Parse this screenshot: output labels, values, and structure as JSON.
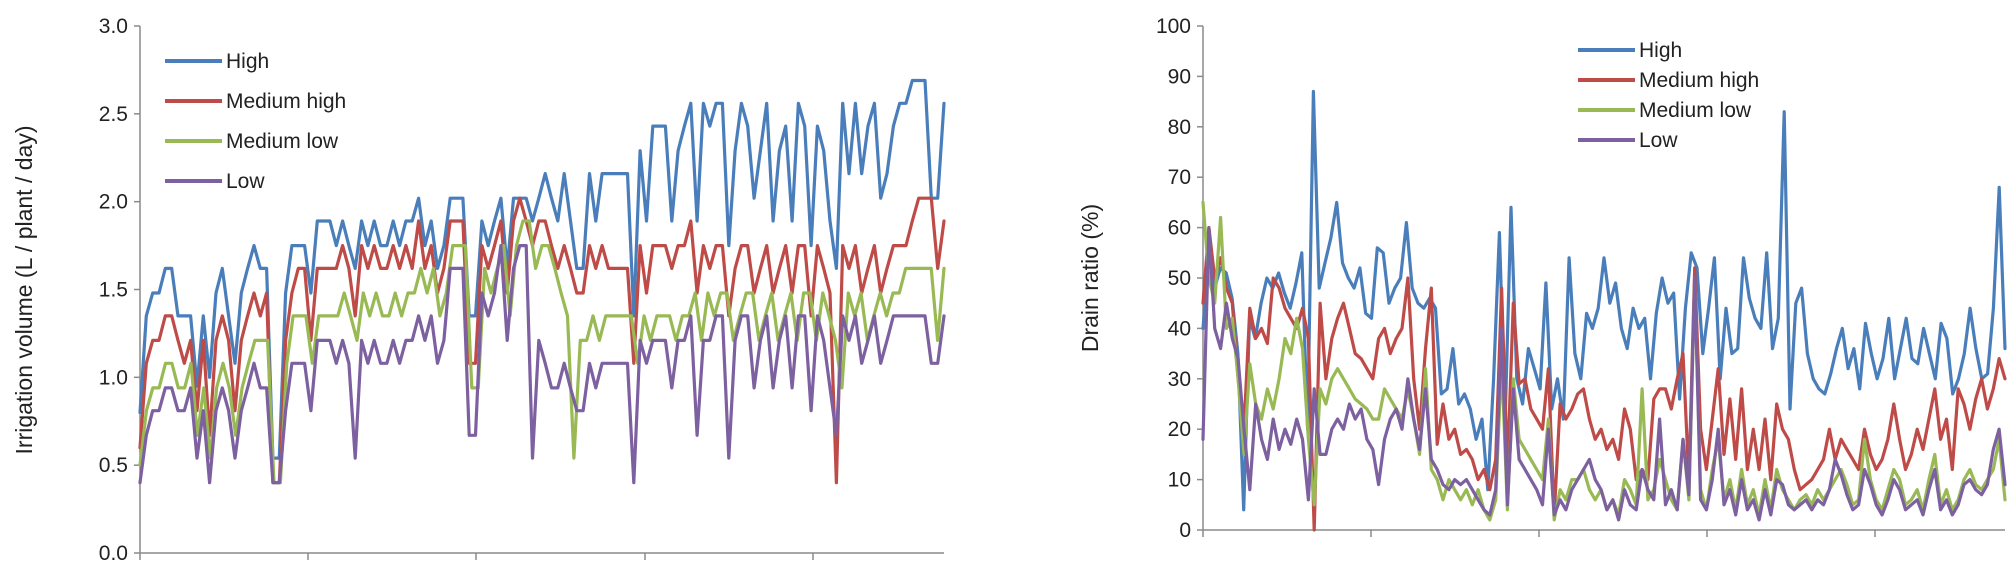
{
  "chart_data": [
    {
      "type": "line",
      "title": "",
      "xlabel": "",
      "ylabel": "Irrigation volume (L / plant / day)",
      "ylim": [
        0,
        3.0
      ],
      "yticks": [
        "0.0",
        "0.5",
        "1.0",
        "1.5",
        "2.0",
        "2.5",
        "3.0"
      ],
      "grid": false,
      "legend": "top-left",
      "series": [
        {
          "name": "High",
          "color": "#4A7EBB",
          "values": [
            0.8,
            1.35,
            1.48,
            1.48,
            1.62,
            1.62,
            1.35,
            1.35,
            1.35,
            0.95,
            1.35,
            1.0,
            1.48,
            1.62,
            1.35,
            1.08,
            1.48,
            1.62,
            1.75,
            1.62,
            1.62,
            0.54,
            0.54,
            1.48,
            1.75,
            1.75,
            1.75,
            1.48,
            1.89,
            1.89,
            1.89,
            1.75,
            1.89,
            1.75,
            1.62,
            1.89,
            1.75,
            1.89,
            1.75,
            1.75,
            1.89,
            1.75,
            1.89,
            1.89,
            2.02,
            1.75,
            1.89,
            1.62,
            1.75,
            2.02,
            2.02,
            2.02,
            1.35,
            1.35,
            1.89,
            1.75,
            1.89,
            2.02,
            1.62,
            2.02,
            2.02,
            2.02,
            1.89,
            2.02,
            2.16,
            2.02,
            1.89,
            2.16,
            1.89,
            1.62,
            1.62,
            2.16,
            1.89,
            2.16,
            2.16,
            2.16,
            2.16,
            2.16,
            1.35,
            2.29,
            1.89,
            2.43,
            2.43,
            2.43,
            1.89,
            2.29,
            2.43,
            2.56,
            1.89,
            2.56,
            2.43,
            2.56,
            2.56,
            1.75,
            2.29,
            2.56,
            2.43,
            2.02,
            2.29,
            2.56,
            1.89,
            2.29,
            2.43,
            1.89,
            2.56,
            2.43,
            1.75,
            2.43,
            2.29,
            1.89,
            1.62,
            2.56,
            2.16,
            2.56,
            2.16,
            2.43,
            2.56,
            2.02,
            2.16,
            2.43,
            2.56,
            2.56,
            2.69,
            2.69,
            2.69,
            2.02,
            2.02,
            2.56
          ]
        },
        {
          "name": "Medium high",
          "color": "#BE4B48",
          "values": [
            0.6,
            1.08,
            1.21,
            1.21,
            1.35,
            1.35,
            1.21,
            1.08,
            1.21,
            0.81,
            1.21,
            0.67,
            1.21,
            1.35,
            1.21,
            0.81,
            1.21,
            1.35,
            1.48,
            1.35,
            1.48,
            0.4,
            0.4,
            1.21,
            1.48,
            1.62,
            1.62,
            1.21,
            1.62,
            1.62,
            1.62,
            1.62,
            1.75,
            1.62,
            1.35,
            1.75,
            1.62,
            1.75,
            1.62,
            1.62,
            1.75,
            1.62,
            1.75,
            1.62,
            1.89,
            1.62,
            1.75,
            1.48,
            1.62,
            1.89,
            1.89,
            1.89,
            1.08,
            1.08,
            1.75,
            1.62,
            1.75,
            1.89,
            1.48,
            1.89,
            2.02,
            1.89,
            1.75,
            1.89,
            1.89,
            1.75,
            1.62,
            1.75,
            1.62,
            1.48,
            1.48,
            1.75,
            1.62,
            1.75,
            1.62,
            1.62,
            1.62,
            1.62,
            1.08,
            1.75,
            1.48,
            1.75,
            1.75,
            1.75,
            1.62,
            1.75,
            1.75,
            1.89,
            1.48,
            1.75,
            1.62,
            1.75,
            1.75,
            1.35,
            1.62,
            1.75,
            1.75,
            1.48,
            1.62,
            1.75,
            1.48,
            1.62,
            1.75,
            1.48,
            1.75,
            1.75,
            1.35,
            1.75,
            1.62,
            1.48,
            0.4,
            1.75,
            1.62,
            1.75,
            1.48,
            1.62,
            1.75,
            1.48,
            1.62,
            1.75,
            1.75,
            1.75,
            1.89,
            2.02,
            2.02,
            2.02,
            1.62,
            1.89
          ]
        },
        {
          "name": "Medium low",
          "color": "#98B954",
          "values": [
            0.5,
            0.81,
            0.94,
            0.94,
            1.08,
            1.08,
            0.94,
            0.94,
            1.08,
            0.67,
            0.94,
            0.54,
            0.94,
            1.08,
            0.94,
            0.67,
            0.94,
            1.08,
            1.21,
            1.21,
            1.21,
            0.4,
            0.4,
            1.08,
            1.35,
            1.35,
            1.35,
            1.08,
            1.35,
            1.35,
            1.35,
            1.35,
            1.48,
            1.35,
            1.21,
            1.48,
            1.35,
            1.48,
            1.35,
            1.35,
            1.48,
            1.35,
            1.48,
            1.48,
            1.62,
            1.48,
            1.62,
            1.35,
            1.48,
            1.75,
            1.75,
            1.75,
            0.94,
            0.94,
            1.62,
            1.48,
            1.62,
            1.75,
            1.35,
            1.75,
            1.89,
            1.89,
            1.62,
            1.75,
            1.75,
            1.62,
            1.48,
            1.35,
            0.54,
            1.21,
            1.21,
            1.35,
            1.21,
            1.35,
            1.35,
            1.35,
            1.35,
            1.35,
            1.08,
            1.35,
            1.21,
            1.35,
            1.35,
            1.35,
            1.21,
            1.35,
            1.35,
            1.48,
            1.21,
            1.48,
            1.35,
            1.48,
            1.48,
            1.21,
            1.35,
            1.48,
            1.48,
            1.21,
            1.35,
            1.48,
            1.21,
            1.35,
            1.48,
            1.21,
            1.48,
            1.48,
            1.21,
            1.48,
            1.35,
            1.21,
            0.94,
            1.48,
            1.35,
            1.48,
            1.21,
            1.35,
            1.48,
            1.35,
            1.48,
            1.48,
            1.62,
            1.62,
            1.62,
            1.62,
            1.62,
            1.21,
            1.62
          ]
        },
        {
          "name": "Low",
          "color": "#7D60A0",
          "values": [
            0.4,
            0.67,
            0.81,
            0.81,
            0.94,
            0.94,
            0.81,
            0.81,
            0.94,
            0.54,
            0.81,
            0.4,
            0.81,
            0.94,
            0.81,
            0.54,
            0.81,
            0.94,
            1.08,
            0.94,
            0.94,
            0.4,
            0.4,
            0.81,
            1.08,
            1.08,
            1.08,
            0.81,
            1.21,
            1.21,
            1.21,
            1.08,
            1.21,
            1.08,
            0.54,
            1.21,
            1.08,
            1.21,
            1.08,
            1.08,
            1.21,
            1.08,
            1.21,
            1.21,
            1.35,
            1.21,
            1.35,
            1.08,
            1.21,
            1.62,
            1.62,
            1.62,
            0.67,
            0.67,
            1.48,
            1.35,
            1.48,
            1.75,
            1.21,
            1.62,
            1.75,
            1.75,
            0.54,
            1.21,
            1.08,
            0.94,
            0.94,
            1.08,
            0.94,
            0.81,
            0.81,
            1.08,
            0.94,
            1.08,
            1.08,
            1.08,
            1.08,
            1.08,
            0.4,
            1.21,
            1.08,
            1.21,
            1.21,
            1.21,
            0.94,
            1.21,
            1.21,
            1.35,
            0.67,
            1.21,
            1.21,
            1.35,
            1.35,
            0.54,
            1.21,
            1.35,
            1.35,
            0.94,
            1.21,
            1.35,
            0.94,
            1.21,
            1.35,
            0.94,
            1.35,
            1.35,
            0.81,
            1.35,
            1.21,
            0.94,
            0.67,
            1.35,
            1.21,
            1.35,
            1.08,
            1.21,
            1.35,
            1.08,
            1.21,
            1.35,
            1.35,
            1.35,
            1.35,
            1.35,
            1.35,
            1.08,
            1.08,
            1.35
          ]
        }
      ]
    },
    {
      "type": "line",
      "title": "",
      "xlabel": "",
      "ylabel": "Drain ratio (%)",
      "ylim": [
        0,
        100
      ],
      "yticks": [
        "0",
        "10",
        "20",
        "30",
        "40",
        "50",
        "60",
        "70",
        "80",
        "90",
        "100"
      ],
      "grid": false,
      "legend": "top-center",
      "series": [
        {
          "name": "High",
          "color": "#4A7EBB",
          "values": [
            40,
            55,
            48,
            52,
            51,
            46,
            35,
            4,
            42,
            38,
            45,
            50,
            48,
            51,
            47,
            44,
            49,
            55,
            20,
            87,
            48,
            53,
            58,
            65,
            53,
            50,
            48,
            52,
            43,
            42,
            56,
            55,
            45,
            48,
            50,
            61,
            48,
            45,
            44,
            46,
            44,
            27,
            28,
            36,
            25,
            27,
            24,
            18,
            22,
            8,
            30,
            59,
            22,
            64,
            30,
            25,
            36,
            32,
            28,
            49,
            24,
            30,
            22,
            54,
            35,
            30,
            43,
            40,
            44,
            54,
            45,
            49,
            40,
            36,
            44,
            40,
            42,
            30,
            43,
            50,
            45,
            47,
            26,
            44,
            55,
            52,
            35,
            44,
            54,
            30,
            44,
            35,
            36,
            54,
            46,
            42,
            40,
            55,
            36,
            42,
            83,
            24,
            45,
            48,
            35,
            30,
            28,
            27,
            31,
            36,
            40,
            32,
            36,
            28,
            41,
            35,
            30,
            34,
            42,
            30,
            36,
            42,
            34,
            33,
            40,
            35,
            30,
            41,
            38,
            27,
            30,
            35,
            44,
            36,
            30,
            31,
            44,
            68,
            36
          ]
        },
        {
          "name": "Medium high",
          "color": "#BE4B48",
          "values": [
            45,
            60,
            50,
            54,
            48,
            45,
            30,
            20,
            44,
            38,
            40,
            37,
            50,
            48,
            44,
            42,
            40,
            44,
            38,
            0,
            45,
            30,
            38,
            42,
            45,
            40,
            35,
            34,
            32,
            30,
            38,
            40,
            35,
            38,
            40,
            50,
            30,
            20,
            36,
            48,
            17,
            25,
            18,
            20,
            15,
            16,
            14,
            10,
            12,
            8,
            14,
            48,
            12,
            45,
            29,
            30,
            24,
            22,
            20,
            32,
            3,
            25,
            22,
            24,
            27,
            28,
            22,
            18,
            20,
            16,
            18,
            14,
            24,
            20,
            10,
            12,
            10,
            26,
            28,
            28,
            24,
            30,
            35,
            10,
            52,
            20,
            12,
            22,
            32,
            15,
            26,
            14,
            28,
            12,
            20,
            12,
            22,
            10,
            25,
            20,
            18,
            12,
            8,
            9,
            10,
            12,
            14,
            20,
            14,
            18,
            16,
            14,
            12,
            20,
            15,
            12,
            14,
            18,
            25,
            18,
            12,
            15,
            20,
            16,
            22,
            28,
            18,
            22,
            12,
            28,
            25,
            20,
            26,
            30,
            24,
            28,
            34,
            30
          ]
        },
        {
          "name": "Medium low",
          "color": "#98B954",
          "values": [
            65,
            50,
            45,
            62,
            40,
            42,
            30,
            15,
            33,
            25,
            22,
            28,
            24,
            30,
            38,
            35,
            42,
            36,
            18,
            5,
            28,
            25,
            30,
            32,
            30,
            28,
            26,
            25,
            24,
            22,
            22,
            28,
            26,
            24,
            22,
            28,
            22,
            15,
            32,
            12,
            10,
            6,
            10,
            8,
            6,
            8,
            5,
            8,
            4,
            2,
            6,
            34,
            4,
            30,
            18,
            16,
            14,
            12,
            10,
            22,
            2,
            8,
            6,
            10,
            10,
            12,
            8,
            6,
            8,
            4,
            6,
            3,
            10,
            8,
            5,
            28,
            6,
            8,
            14,
            10,
            6,
            4,
            18,
            6,
            49,
            8,
            4,
            12,
            18,
            6,
            10,
            4,
            12,
            5,
            8,
            3,
            10,
            4,
            12,
            8,
            6,
            4,
            6,
            7,
            5,
            8,
            6,
            8,
            10,
            12,
            9,
            5,
            6,
            18,
            10,
            6,
            4,
            8,
            12,
            10,
            5,
            6,
            8,
            4,
            10,
            15,
            5,
            8,
            4,
            6,
            10,
            12,
            9,
            8,
            10,
            12,
            18,
            6
          ]
        },
        {
          "name": "Low",
          "color": "#7D60A0",
          "values": [
            18,
            60,
            40,
            36,
            45,
            38,
            34,
            20,
            8,
            25,
            18,
            14,
            22,
            16,
            20,
            17,
            22,
            18,
            6,
            28,
            15,
            15,
            20,
            22,
            20,
            25,
            22,
            24,
            18,
            16,
            9,
            18,
            22,
            24,
            20,
            30,
            22,
            16,
            28,
            14,
            12,
            9,
            8,
            10,
            9,
            10,
            8,
            6,
            4,
            3,
            8,
            40,
            5,
            28,
            14,
            12,
            10,
            8,
            5,
            20,
            3,
            6,
            4,
            8,
            10,
            12,
            14,
            10,
            8,
            4,
            6,
            2,
            8,
            5,
            4,
            12,
            8,
            6,
            22,
            5,
            8,
            4,
            18,
            7,
            50,
            6,
            4,
            10,
            20,
            5,
            8,
            3,
            10,
            4,
            6,
            2,
            8,
            3,
            10,
            9,
            5,
            4,
            5,
            6,
            4,
            6,
            5,
            8,
            14,
            11,
            7,
            4,
            5,
            12,
            9,
            5,
            3,
            6,
            10,
            8,
            4,
            5,
            6,
            3,
            8,
            12,
            4,
            6,
            3,
            5,
            9,
            10,
            8,
            7,
            9,
            16,
            20,
            9
          ]
        }
      ]
    }
  ]
}
